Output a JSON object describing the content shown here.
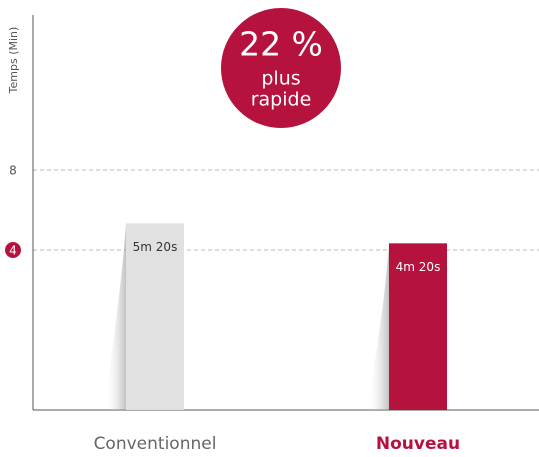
{
  "chart_data": {
    "type": "bar",
    "ylabel": "Temps (Min)",
    "categories": [
      "Conventionnel",
      "Nouveau"
    ],
    "values": [
      5.333,
      4.333
    ],
    "value_labels": [
      "5m 20s",
      "4m 20s"
    ],
    "colors": [
      "#e1e1e1",
      "#b5123e"
    ],
    "ylim": [
      -4,
      15.75
    ],
    "yticks": [
      4,
      8
    ],
    "grid": true,
    "annotation": {
      "value": "22 %",
      "text": [
        "plus",
        "rapide"
      ],
      "color": "#b5123e"
    }
  }
}
